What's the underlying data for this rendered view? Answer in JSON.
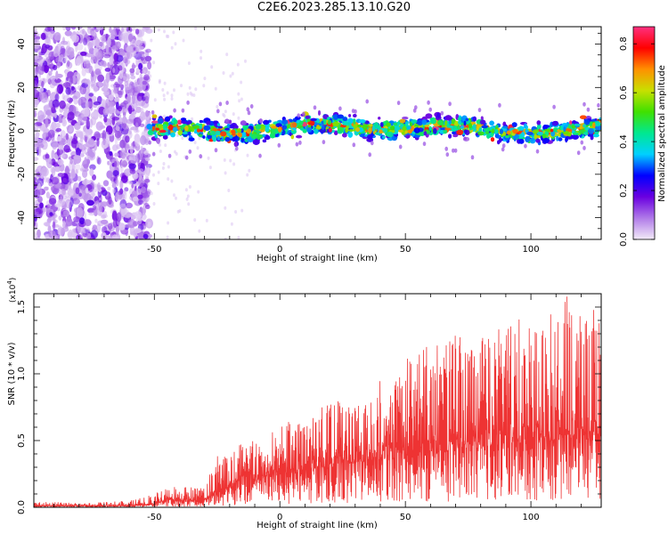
{
  "title": "C2E6.2023.285.13.10.G20",
  "chart_data": [
    {
      "type": "heatmap",
      "xlabel": "Height of straight line (km)",
      "ylabel": "Frequency (Hz)",
      "xlim": [
        -98,
        128
      ],
      "ylim": [
        -50,
        48
      ],
      "xticks": [
        -50,
        0,
        50,
        100
      ],
      "yticks": [
        -40,
        -20,
        0,
        20,
        40
      ],
      "grid": false,
      "noise_region": {
        "x": [
          -98,
          -52
        ],
        "y": [
          -50,
          48
        ]
      },
      "signal_band": {
        "x": [
          -52,
          128
        ],
        "center_frequency_hz": 1,
        "half_width_hz": 5
      },
      "colorbar": {
        "label": "Normalized spectral amplitude",
        "range": [
          0,
          0.87
        ],
        "ticks": [
          0.0,
          0.2,
          0.4,
          0.6,
          0.8
        ],
        "colormap": [
          "#f2eaf8",
          "#b07ae8",
          "#6a00e0",
          "#0000ff",
          "#00d0ff",
          "#00e890",
          "#40e000",
          "#c8e000",
          "#ff9000",
          "#ff0000",
          "#ff3080"
        ]
      }
    },
    {
      "type": "line",
      "xlabel": "Height of straight line (km)",
      "ylabel": "SNR (10 * v/v)",
      "y_scale_note": "(x10^4)",
      "xlim": [
        -98,
        128
      ],
      "ylim": [
        0,
        1.6
      ],
      "xticks": [
        -50,
        0,
        50,
        100
      ],
      "yticks": [
        0.0,
        0.5,
        1.0,
        1.5
      ],
      "ytick_labels": [
        "0.0",
        "0.5",
        "1.0",
        "1.5"
      ],
      "grid": false,
      "color": "#ee3333",
      "series": [
        {
          "x": [
            -98,
            -90,
            -80,
            -70,
            -60,
            -50,
            -45,
            -40,
            -35,
            -30,
            -25,
            -20,
            -15,
            -10,
            -5,
            0,
            5,
            10,
            15,
            20,
            25,
            30,
            35,
            40,
            45,
            50,
            55,
            60,
            65,
            70,
            75,
            80,
            85,
            90,
            95,
            100,
            105,
            110,
            115,
            120,
            125,
            128
          ],
          "y_envelope_max": [
            0.04,
            0.04,
            0.03,
            0.04,
            0.05,
            0.1,
            0.15,
            0.17,
            0.15,
            0.14,
            0.4,
            0.38,
            0.5,
            0.52,
            0.55,
            0.6,
            0.68,
            0.62,
            0.75,
            0.78,
            0.82,
            0.75,
            0.85,
            0.95,
            0.92,
            1.12,
            1.15,
            1.25,
            1.2,
            1.3,
            1.28,
            1.3,
            1.38,
            1.45,
            1.42,
            1.35,
            1.45,
            1.52,
            1.6,
            1.58,
            1.5,
            1.38
          ],
          "y_envelope_mean": [
            0.01,
            0.01,
            0.01,
            0.01,
            0.01,
            0.02,
            0.05,
            0.05,
            0.05,
            0.06,
            0.1,
            0.15,
            0.18,
            0.2,
            0.22,
            0.24,
            0.26,
            0.27,
            0.28,
            0.3,
            0.32,
            0.33,
            0.34,
            0.36,
            0.37,
            0.38,
            0.4,
            0.42,
            0.42,
            0.44,
            0.44,
            0.45,
            0.46,
            0.48,
            0.48,
            0.5,
            0.5,
            0.5,
            0.52,
            0.52,
            0.5,
            0.5
          ]
        }
      ]
    }
  ]
}
